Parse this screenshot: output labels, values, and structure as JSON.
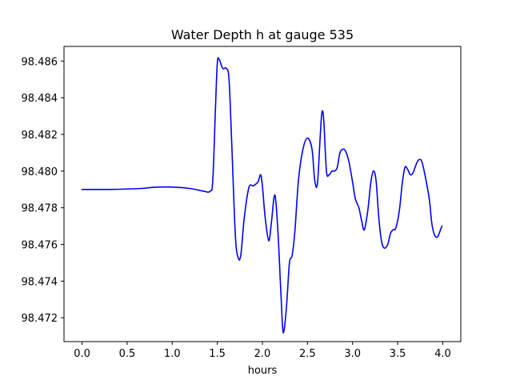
{
  "chart_data": {
    "type": "line",
    "title": "Water Depth h at gauge 535",
    "xlabel": "hours",
    "ylabel": "",
    "xlim": [
      -0.2,
      4.2
    ],
    "ylim": [
      98.4707,
      98.4868
    ],
    "x_ticks": [
      0.0,
      0.5,
      1.0,
      1.5,
      2.0,
      2.5,
      3.0,
      3.5,
      4.0
    ],
    "x_tick_labels": [
      "0.0",
      "0.5",
      "1.0",
      "1.5",
      "2.0",
      "2.5",
      "3.0",
      "3.5",
      "4.0"
    ],
    "y_ticks": [
      98.472,
      98.474,
      98.476,
      98.478,
      98.48,
      98.482,
      98.484,
      98.486
    ],
    "y_tick_labels": [
      "98.472",
      "98.474",
      "98.476",
      "98.478",
      "98.480",
      "98.482",
      "98.484",
      "98.486"
    ],
    "grid": false,
    "series": [
      {
        "color": "#0000ff",
        "x": [
          0.0,
          0.3,
          0.65,
          0.8,
          1.0,
          1.2,
          1.35,
          1.42,
          1.45,
          1.48,
          1.5,
          1.52,
          1.56,
          1.6,
          1.63,
          1.66,
          1.7,
          1.73,
          1.76,
          1.8,
          1.85,
          1.9,
          1.95,
          1.98,
          2.0,
          2.03,
          2.07,
          2.1,
          2.13,
          2.15,
          2.18,
          2.22,
          2.24,
          2.27,
          2.3,
          2.33,
          2.36,
          2.4,
          2.45,
          2.5,
          2.55,
          2.58,
          2.61,
          2.64,
          2.66,
          2.68,
          2.71,
          2.74,
          2.77,
          2.8,
          2.83,
          2.86,
          2.9,
          2.93,
          2.96,
          3.0,
          3.03,
          3.07,
          3.1,
          3.13,
          3.17,
          3.2,
          3.23,
          3.26,
          3.29,
          3.32,
          3.35,
          3.39,
          3.42,
          3.45,
          3.48,
          3.52,
          3.55,
          3.58,
          3.61,
          3.64,
          3.67,
          3.7,
          3.73,
          3.76,
          3.78,
          3.81,
          3.85,
          3.88,
          3.91,
          3.94,
          3.96,
          3.99
        ],
        "y": [
          98.479,
          98.479,
          98.47905,
          98.47912,
          98.47913,
          98.47905,
          98.4789,
          98.4789,
          98.4795,
          98.4835,
          98.4859,
          98.4861,
          98.4856,
          98.4856,
          98.485,
          98.4815,
          98.4765,
          98.4753,
          98.4754,
          98.4775,
          98.4791,
          98.4792,
          98.4794,
          98.4798,
          98.4792,
          98.4775,
          98.4762,
          98.4772,
          98.4786,
          98.4783,
          98.476,
          98.4718,
          98.4713,
          98.4728,
          98.475,
          98.4754,
          98.4767,
          98.4795,
          98.4812,
          98.4818,
          98.4812,
          98.4795,
          98.4793,
          98.4818,
          98.4832,
          98.4828,
          98.48,
          98.4798,
          98.48,
          98.48,
          98.4802,
          98.481,
          98.4812,
          98.481,
          98.4805,
          98.4794,
          98.4785,
          98.478,
          98.4773,
          98.4768,
          98.4779,
          98.4793,
          98.48,
          98.4795,
          98.4775,
          98.4762,
          98.4758,
          98.476,
          98.4766,
          98.4768,
          98.4769,
          98.4779,
          98.4793,
          98.4802,
          98.4801,
          98.4798,
          98.4799,
          98.4803,
          98.4806,
          98.4806,
          98.4803,
          98.4796,
          98.4785,
          98.4771,
          98.4765,
          98.4764,
          98.4766,
          98.477
        ]
      }
    ]
  }
}
